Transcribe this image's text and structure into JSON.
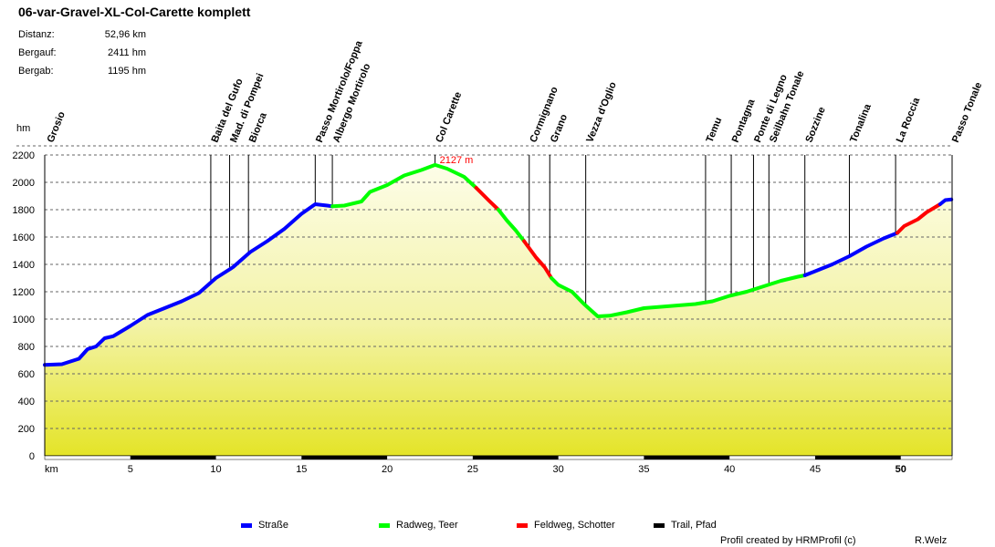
{
  "chart_data": {
    "type": "area",
    "title": "06-var-Gravel-XL-Col-Carette komplett",
    "stats": [
      {
        "label": "Distanz:",
        "value": "52,96 km"
      },
      {
        "label": "Bergauf:",
        "value": "2411 hm"
      },
      {
        "label": "Bergab:",
        "value": "1195 hm"
      }
    ],
    "xlabel": "km",
    "ylabel": "hm",
    "xlim": [
      0,
      53
    ],
    "ylim": [
      0,
      2200
    ],
    "x_ticks": [
      5,
      10,
      15,
      20,
      25,
      30,
      35,
      40,
      45,
      50
    ],
    "y_ticks": [
      0,
      200,
      400,
      600,
      800,
      1000,
      1200,
      1400,
      1600,
      1800,
      2000,
      2200
    ],
    "grid": true,
    "peak_label": "2127 m",
    "peak": {
      "x": 22.8,
      "y": 2127
    },
    "series": [
      {
        "name": "Straße",
        "color": "#0000ff",
        "points": [
          [
            0,
            665
          ],
          [
            1,
            670
          ],
          [
            2,
            710
          ],
          [
            2.5,
            780
          ],
          [
            3,
            800
          ],
          [
            3.5,
            860
          ],
          [
            4,
            875
          ],
          [
            5,
            950
          ],
          [
            6,
            1030
          ],
          [
            7,
            1080
          ],
          [
            8,
            1130
          ],
          [
            9,
            1190
          ],
          [
            10,
            1300
          ],
          [
            11,
            1380
          ],
          [
            12,
            1490
          ],
          [
            13,
            1570
          ],
          [
            14,
            1660
          ],
          [
            15,
            1770
          ],
          [
            15.8,
            1840
          ],
          [
            16.5,
            1830
          ],
          [
            16.8,
            1825
          ]
        ]
      },
      {
        "name": "Radweg, Teer",
        "color": "#00ff00",
        "points": [
          [
            16.8,
            1825
          ],
          [
            17.5,
            1830
          ],
          [
            18.5,
            1860
          ],
          [
            19,
            1930
          ],
          [
            20,
            1980
          ],
          [
            21,
            2050
          ],
          [
            22,
            2090
          ],
          [
            22.8,
            2127
          ],
          [
            23.5,
            2100
          ],
          [
            24.5,
            2040
          ],
          [
            25.2,
            1960
          ]
        ]
      },
      {
        "name": "Feldweg, Schotter",
        "color": "#ff0000",
        "points": [
          [
            25.2,
            1960
          ],
          [
            26,
            1860
          ],
          [
            26.5,
            1800
          ]
        ]
      },
      {
        "name": "Radweg, Teer",
        "color": "#00ff00",
        "points": [
          [
            26.5,
            1800
          ],
          [
            27,
            1720
          ],
          [
            27.5,
            1650
          ],
          [
            28,
            1570
          ]
        ]
      },
      {
        "name": "Feldweg, Schotter",
        "color": "#ff0000",
        "points": [
          [
            28,
            1570
          ],
          [
            28.7,
            1450
          ],
          [
            29.2,
            1380
          ],
          [
            29.6,
            1300
          ]
        ]
      },
      {
        "name": "Radweg, Teer",
        "color": "#00ff00",
        "points": [
          [
            29.6,
            1300
          ],
          [
            30,
            1250
          ],
          [
            30.8,
            1200
          ],
          [
            31.5,
            1110
          ],
          [
            32.3,
            1020
          ],
          [
            33,
            1025
          ],
          [
            34,
            1050
          ],
          [
            35,
            1080
          ],
          [
            36,
            1090
          ],
          [
            37,
            1100
          ],
          [
            38,
            1110
          ],
          [
            39,
            1130
          ],
          [
            40,
            1170
          ],
          [
            41,
            1200
          ],
          [
            42,
            1240
          ],
          [
            43,
            1280
          ],
          [
            44,
            1310
          ],
          [
            44.4,
            1320
          ]
        ]
      },
      {
        "name": "Straße",
        "color": "#0000ff",
        "points": [
          [
            44.4,
            1320
          ],
          [
            45,
            1350
          ],
          [
            46,
            1400
          ],
          [
            47,
            1460
          ],
          [
            48,
            1530
          ],
          [
            49,
            1590
          ],
          [
            49.8,
            1630
          ]
        ]
      },
      {
        "name": "Feldweg, Schotter",
        "color": "#ff0000",
        "points": [
          [
            49.8,
            1630
          ],
          [
            50.2,
            1680
          ],
          [
            51,
            1730
          ],
          [
            51.5,
            1780
          ],
          [
            52.3,
            1840
          ]
        ]
      },
      {
        "name": "Straße",
        "color": "#0000ff",
        "points": [
          [
            52.3,
            1840
          ],
          [
            52.6,
            1870
          ],
          [
            52.96,
            1875
          ]
        ]
      }
    ],
    "bottom_bar": {
      "black_ranges": [
        [
          5,
          10
        ],
        [
          15,
          20
        ],
        [
          25,
          30
        ],
        [
          35,
          40
        ],
        [
          45,
          50
        ]
      ]
    },
    "waypoints": [
      {
        "name": "Grosio",
        "x": 0.1
      },
      {
        "name": "Baita del Gufo",
        "x": 9.7
      },
      {
        "name": "Mad. di Pompei",
        "x": 10.8
      },
      {
        "name": "Biorca",
        "x": 11.9
      },
      {
        "name": "Passo Mortirolo/Foppa",
        "x": 15.8
      },
      {
        "name": "Albergo Mortirolo",
        "x": 16.8
      },
      {
        "name": "Col Carette",
        "x": 22.8
      },
      {
        "name": "Cormignano",
        "x": 28.3
      },
      {
        "name": "Grano",
        "x": 29.5
      },
      {
        "name": "Vezza d'Oglio",
        "x": 31.6
      },
      {
        "name": "Temu",
        "x": 38.6
      },
      {
        "name": "Pontagna",
        "x": 40.1
      },
      {
        "name": "Ponte di Legno",
        "x": 41.4
      },
      {
        "name": "Seilbahn Tonale",
        "x": 42.3
      },
      {
        "name": "Sozzine",
        "x": 44.4
      },
      {
        "name": "Tonalina",
        "x": 47
      },
      {
        "name": "La Roccia",
        "x": 49.7
      },
      {
        "name": "Passo Tonale",
        "x": 52.96
      }
    ],
    "legend": [
      {
        "label": "Straße",
        "color": "#0000ff"
      },
      {
        "label": "Radweg, Teer",
        "color": "#00ff00"
      },
      {
        "label": "Feldweg, Schotter",
        "color": "#ff0000"
      },
      {
        "label": "Trail, Pfad",
        "color": "#000000"
      }
    ]
  },
  "footer": {
    "credit": "Profil created by HRMProfil (c)",
    "author": "R.Welz"
  }
}
